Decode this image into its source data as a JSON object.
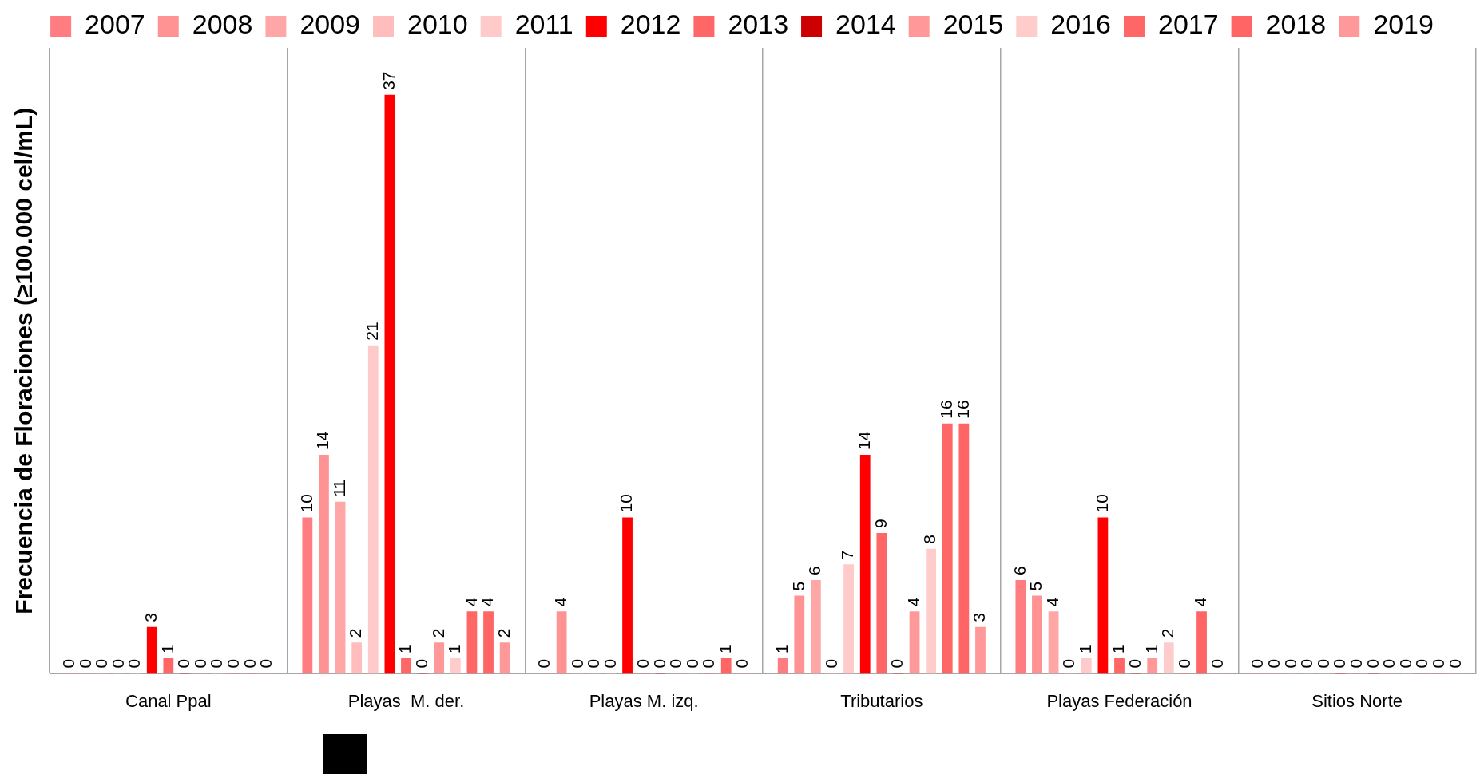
{
  "chart_data": {
    "type": "bar",
    "ylabel": "Frecuencia de Floraciones (≥100.000 cel/mL)",
    "categories": [
      "Canal Ppal",
      "Playas  M. der.",
      "Playas M. izq.",
      "Tributarios",
      "Playas Federación",
      "Sitios Norte"
    ],
    "series": [
      {
        "name": "2007",
        "color": "#ff7c80",
        "values": [
          0,
          10,
          0,
          1,
          6,
          0
        ]
      },
      {
        "name": "2008",
        "color": "#ff9393",
        "values": [
          0,
          14,
          4,
          5,
          5,
          0
        ]
      },
      {
        "name": "2009",
        "color": "#ffa7a7",
        "values": [
          0,
          11,
          0,
          6,
          4,
          0
        ]
      },
      {
        "name": "2010",
        "color": "#ffbdbd",
        "values": [
          0,
          2,
          0,
          0,
          0,
          0
        ]
      },
      {
        "name": "2011",
        "color": "#ffcaca",
        "values": [
          0,
          21,
          0,
          7,
          1,
          0
        ]
      },
      {
        "name": "2012",
        "color": "#ff0000",
        "values": [
          3,
          37,
          10,
          14,
          10,
          0
        ]
      },
      {
        "name": "2013",
        "color": "#ff6666",
        "values": [
          1,
          1,
          0,
          9,
          1,
          0
        ]
      },
      {
        "name": "2014",
        "color": "#cc0000",
        "values": [
          0,
          0,
          0,
          0,
          0,
          0
        ]
      },
      {
        "name": "2015",
        "color": "#ff9999",
        "values": [
          0,
          2,
          0,
          4,
          1,
          0
        ]
      },
      {
        "name": "2016",
        "color": "#ffcccc",
        "values": [
          0,
          1,
          0,
          8,
          2,
          0
        ]
      },
      {
        "name": "2017",
        "color": "#ff6666",
        "values": [
          0,
          4,
          0,
          16,
          0,
          0
        ]
      },
      {
        "name": "2018",
        "color": "#ff6565",
        "values": [
          0,
          4,
          1,
          16,
          4,
          0
        ]
      },
      {
        "name": "2019",
        "color": "#ff9999",
        "values": [
          0,
          2,
          0,
          3,
          0,
          0
        ]
      }
    ],
    "data_labels": true,
    "grid": "x",
    "legend": "top"
  }
}
